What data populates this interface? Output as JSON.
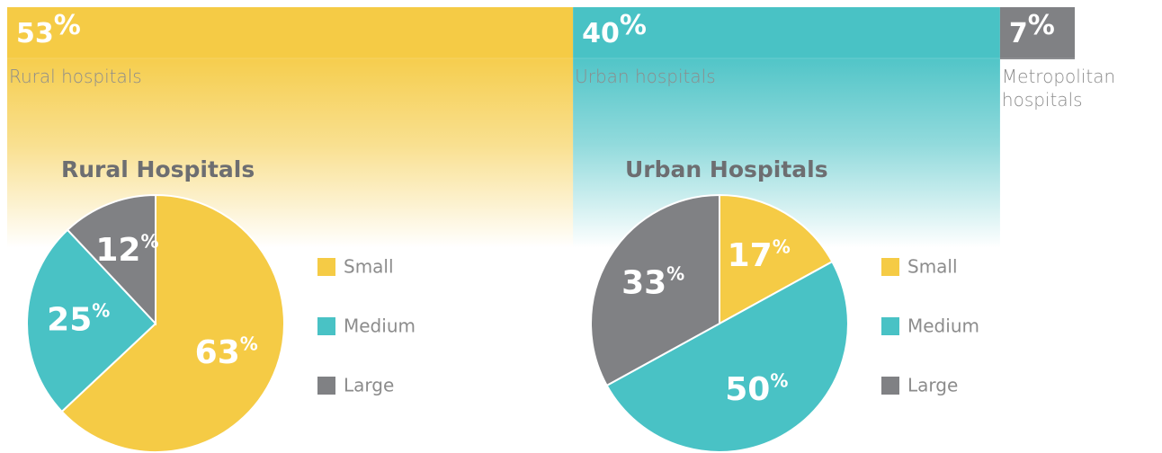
{
  "chart_data": [
    {
      "type": "stacked_bar",
      "categories": [
        "Rural hospitals",
        "Urban hospitals",
        "Metropolitan hospitals"
      ],
      "values": [
        53,
        40,
        7
      ],
      "value_labels": [
        "53%",
        "40%",
        "7%"
      ],
      "colors": [
        "#f5cb45",
        "#49c2c5",
        "#808184"
      ],
      "xlim": [
        0,
        100
      ]
    },
    {
      "type": "pie",
      "title": "Rural Hospitals",
      "categories": [
        "Small",
        "Medium",
        "Large"
      ],
      "values": [
        63,
        25,
        12
      ],
      "value_labels": [
        "63%",
        "25%",
        "12%"
      ],
      "colors": [
        "#f5cb45",
        "#49c2c5",
        "#808184"
      ]
    },
    {
      "type": "pie",
      "title": "Urban Hospitals",
      "categories": [
        "Small",
        "Medium",
        "Large"
      ],
      "values": [
        17,
        50,
        33
      ],
      "value_labels": [
        "17%",
        "50%",
        "33%"
      ],
      "colors": [
        "#f5cb45",
        "#49c2c5",
        "#808184"
      ]
    }
  ]
}
